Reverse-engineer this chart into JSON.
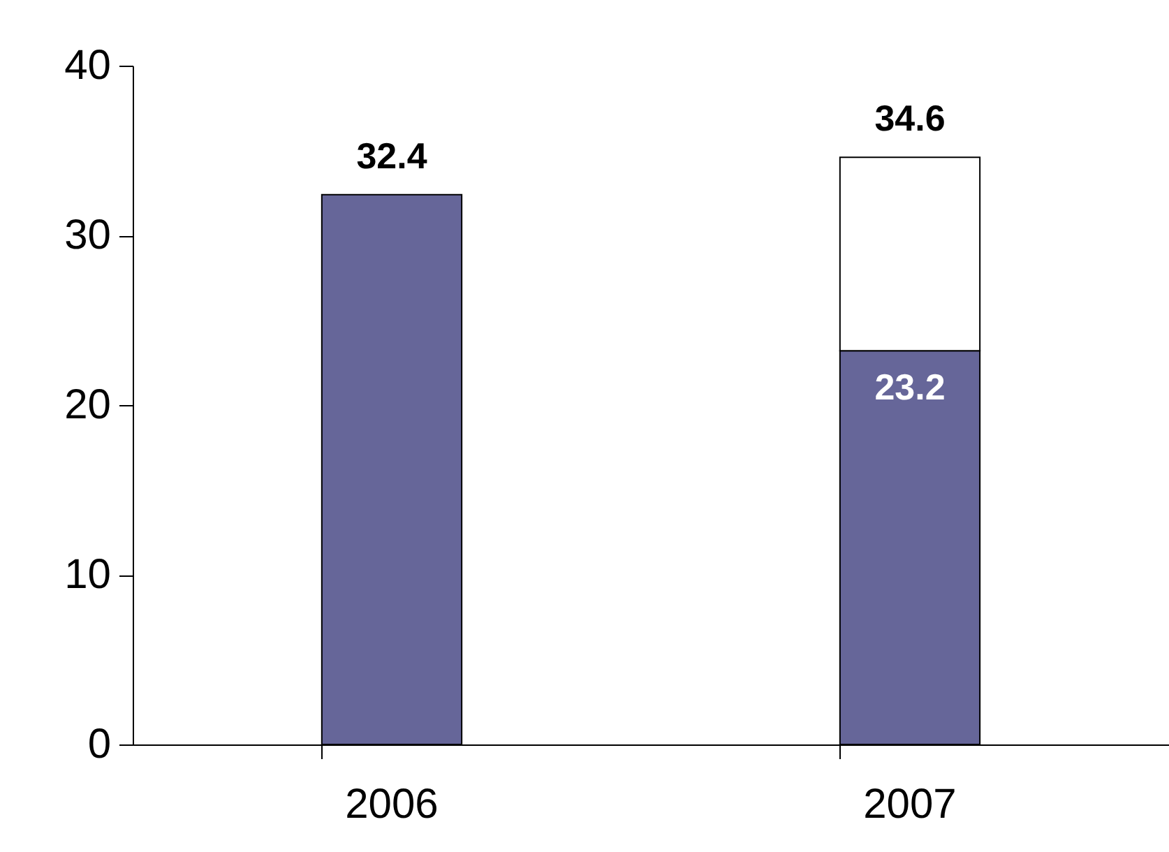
{
  "chart_data": {
    "type": "bar",
    "stacked": true,
    "categories": [
      "2006",
      "2007"
    ],
    "series": [
      {
        "color": "#666699",
        "values": [
          32.4,
          23.2
        ],
        "value_labels": [
          null,
          "23.2"
        ]
      },
      {
        "color": "#ffffff",
        "values": [
          null,
          11.4
        ]
      }
    ],
    "totals": [
      "32.4",
      "34.6"
    ],
    "ylim": [
      0,
      40
    ],
    "yticks": [
      0,
      10,
      20,
      30,
      40
    ],
    "grid": false,
    "legend": false
  }
}
